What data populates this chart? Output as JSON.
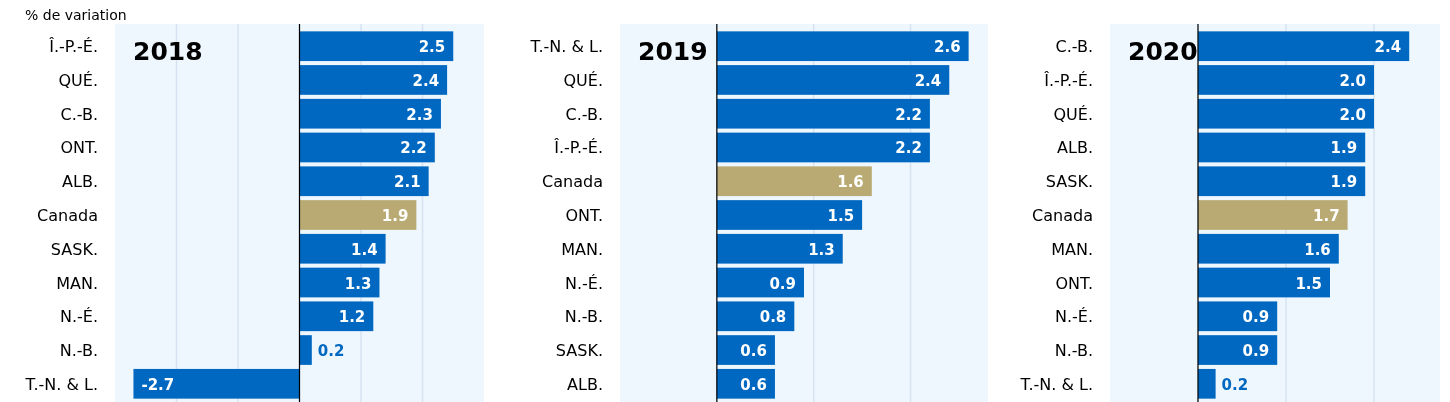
{
  "chart_data": [
    {
      "type": "bar",
      "orientation": "horizontal",
      "title": "2018",
      "annotations": [
        "% de variation"
      ],
      "categories": [
        "Î.-P.-É.",
        "QUÉ.",
        "C.-B.",
        "ONT.",
        "ALB.",
        "Canada",
        "SASK.",
        "MAN.",
        "N.-É.",
        "N.-B.",
        "T.-N. & L."
      ],
      "values": [
        2.5,
        2.4,
        2.3,
        2.2,
        2.1,
        1.9,
        1.4,
        1.3,
        1.2,
        0.2,
        -2.7
      ],
      "colors": [
        "#0068c0",
        "#0068c0",
        "#0068c0",
        "#0068c0",
        "#0068c0",
        "#b8aa72",
        "#0068c0",
        "#0068c0",
        "#0068c0",
        "#0068c0",
        "#0068c0"
      ],
      "xlim": [
        -3,
        3
      ],
      "xticks": [
        {
          "value": -2,
          "label": null
        },
        {
          "value": -1,
          "label": null
        },
        {
          "value": 0,
          "label": null
        },
        {
          "value": 1,
          "label": null
        },
        {
          "value": 2,
          "label": null
        }
      ],
      "tick_labels": "y",
      "grid": "x",
      "data_labels": true
    },
    {
      "type": "bar",
      "orientation": "horizontal",
      "title": "2019",
      "categories": [
        "T.-N. & L.",
        "QUÉ.",
        "C.-B.",
        "Î.-P.-É.",
        "Canada",
        "ONT.",
        "MAN.",
        "N.-É.",
        "N.-B.",
        "SASK.",
        "ALB."
      ],
      "values": [
        2.6,
        2.4,
        2.2,
        2.2,
        1.6,
        1.5,
        1.3,
        0.9,
        0.8,
        0.6,
        0.6
      ],
      "colors": [
        "#0068c0",
        "#0068c0",
        "#0068c0",
        "#0068c0",
        "#b8aa72",
        "#0068c0",
        "#0068c0",
        "#0068c0",
        "#0068c0",
        "#0068c0",
        "#0068c0"
      ],
      "xlim": [
        -1,
        2.8
      ],
      "xticks": [
        {
          "value": 0,
          "label": null
        },
        {
          "value": 1,
          "label": null
        },
        {
          "value": 2,
          "label": null
        }
      ],
      "tick_labels": "y",
      "grid": "x",
      "data_labels": true
    },
    {
      "type": "bar",
      "orientation": "horizontal",
      "title": "2020",
      "categories": [
        "C.-B.",
        "Î.-P.-É.",
        "QUÉ.",
        "ALB.",
        "SASK.",
        "Canada",
        "MAN.",
        "ONT.",
        "N.-É.",
        "N.-B.",
        "T.-N. & L."
      ],
      "values": [
        2.4,
        2.0,
        2.0,
        1.9,
        1.9,
        1.7,
        1.6,
        1.5,
        0.9,
        0.9,
        0.2
      ],
      "value_labels": [
        "2.4",
        "2.0",
        "2.0",
        "1.9",
        "1.9",
        "1.7",
        "1.6",
        "1.5",
        "0.9",
        "0.9",
        "0.2"
      ],
      "colors": [
        "#0068c0",
        "#0068c0",
        "#0068c0",
        "#0068c0",
        "#0068c0",
        "#b8aa72",
        "#0068c0",
        "#0068c0",
        "#0068c0",
        "#0068c0",
        "#0068c0"
      ],
      "xlim": [
        -1,
        2.75
      ],
      "xticks": [
        {
          "value": 0,
          "label": null
        },
        {
          "value": 1,
          "label": null
        },
        {
          "value": 2,
          "label": null
        }
      ],
      "tick_labels": "y",
      "grid": "x"
    }
  ]
}
